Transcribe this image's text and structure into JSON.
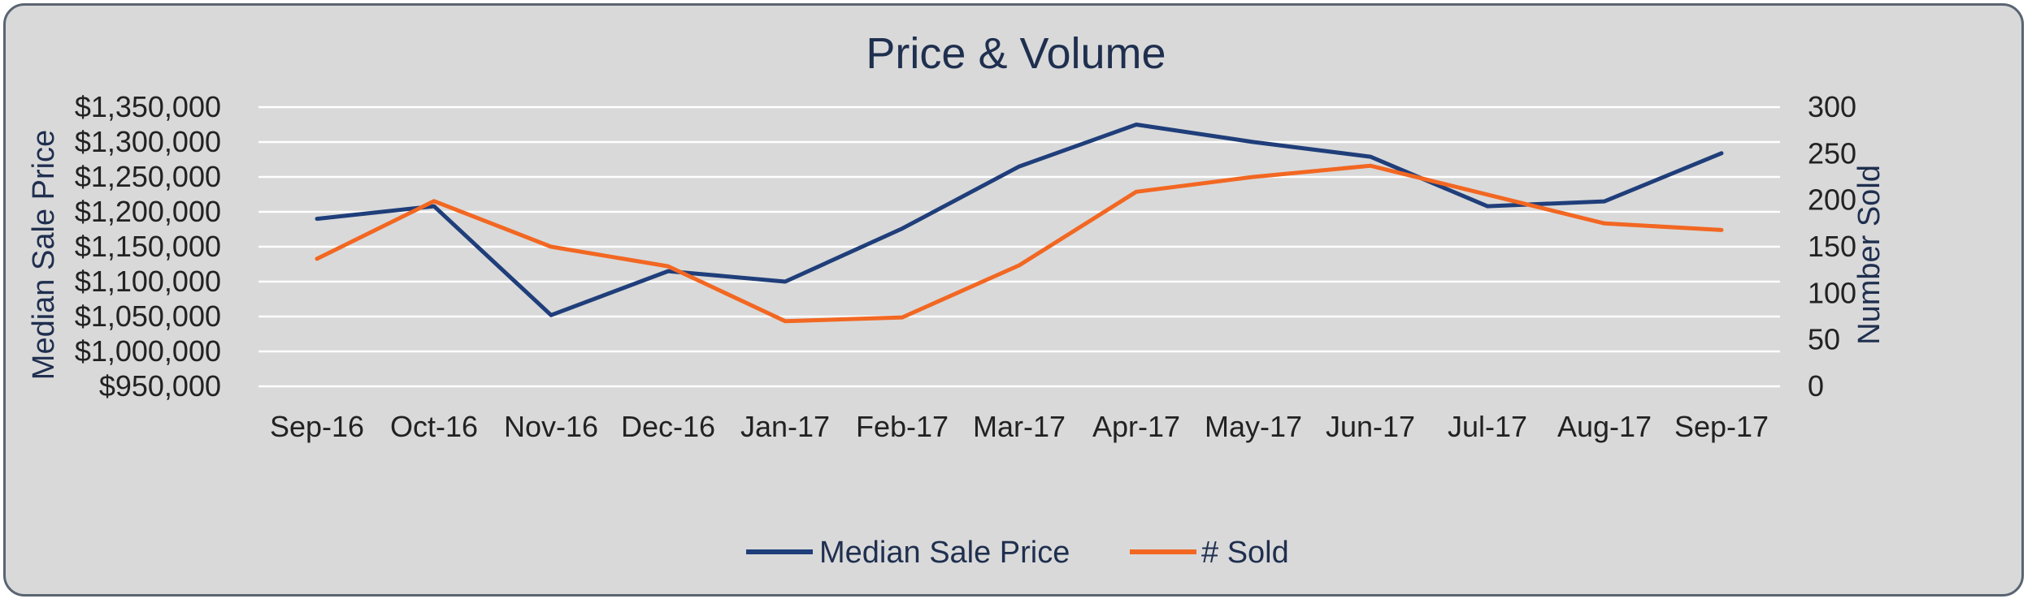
{
  "chart_data": {
    "type": "line",
    "title": "Price & Volume",
    "categories": [
      "Sep-16",
      "Oct-16",
      "Nov-16",
      "Dec-16",
      "Jan-17",
      "Feb-17",
      "Mar-17",
      "Apr-17",
      "May-17",
      "Jun-17",
      "Jul-17",
      "Aug-17",
      "Sep-17"
    ],
    "series": [
      {
        "name": "Median Sale Price",
        "axis": "left",
        "color": "#1f3e7a",
        "values": [
          1190000,
          1208000,
          1052000,
          1115000,
          1100000,
          1176000,
          1265000,
          1325000,
          1300000,
          1279000,
          1208000,
          1215000,
          1284000
        ]
      },
      {
        "name": "# Sold",
        "axis": "right",
        "color": "#f26722",
        "values": [
          137,
          199,
          150,
          129,
          70,
          74,
          130,
          209,
          225,
          237,
          206,
          175,
          168
        ]
      }
    ],
    "y_left": {
      "label": "Median Sale Price",
      "ylim": [
        950000,
        1350000
      ],
      "ticks": [
        "$1,350,000",
        "$1,300,000",
        "$1,250,000",
        "$1,200,000",
        "$1,150,000",
        "$1,100,000",
        "$1,050,000",
        "$1,000,000",
        "$950,000"
      ]
    },
    "y_right": {
      "label": "Number Sold",
      "ylim": [
        0,
        300
      ],
      "ticks": [
        "300",
        "250",
        "200",
        "150",
        "100",
        "50",
        "0"
      ]
    },
    "grid": true,
    "legend_position": "bottom"
  }
}
